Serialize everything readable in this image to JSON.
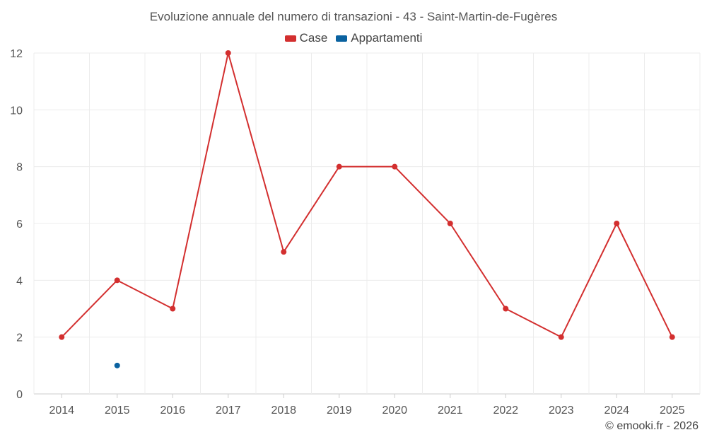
{
  "chart_data": {
    "type": "line",
    "title": "Evoluzione annuale del numero di transazioni - 43 - Saint-Martin-de-Fugères",
    "categories": [
      "2014",
      "2015",
      "2016",
      "2017",
      "2018",
      "2019",
      "2020",
      "2021",
      "2022",
      "2023",
      "2024",
      "2025"
    ],
    "series": [
      {
        "name": "Case",
        "color": "#d32f2f",
        "values": [
          2,
          4,
          3,
          12,
          5,
          8,
          8,
          6,
          3,
          2,
          6,
          2
        ]
      },
      {
        "name": "Appartamenti",
        "color": "#0a62a0",
        "values": [
          null,
          1,
          null,
          null,
          null,
          null,
          null,
          null,
          null,
          null,
          null,
          null
        ]
      }
    ],
    "ylim": [
      0,
      12
    ],
    "yticks": [
      0,
      2,
      4,
      6,
      8,
      10,
      12
    ],
    "xlabel": "",
    "ylabel": "",
    "grid": true,
    "legend_position": "top-center"
  },
  "credit": "© emooki.fr - 2026"
}
